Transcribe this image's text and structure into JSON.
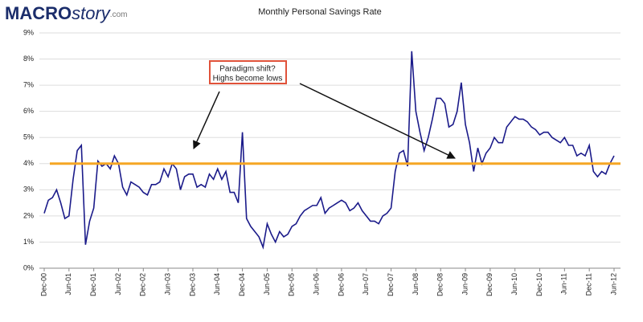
{
  "logo": {
    "main": "MACRO",
    "accent": "story",
    "suffix": ".com"
  },
  "chart_data": {
    "type": "line",
    "title": "Monthly Personal Savings Rate",
    "annotation": [
      "Paradigm shift?",
      "Highs become lows"
    ],
    "categories": [
      "Dec-00",
      null,
      null,
      null,
      null,
      null,
      "Jun-01",
      null,
      null,
      null,
      null,
      null,
      "Dec-01",
      null,
      null,
      null,
      null,
      null,
      "Jun-02",
      null,
      null,
      null,
      null,
      null,
      "Dec-02",
      null,
      null,
      null,
      null,
      null,
      "Jun-03",
      null,
      null,
      null,
      null,
      null,
      "Dec-03",
      null,
      null,
      null,
      null,
      null,
      "Jun-04",
      null,
      null,
      null,
      null,
      null,
      "Dec-04",
      null,
      null,
      null,
      null,
      null,
      "Jun-05",
      null,
      null,
      null,
      null,
      null,
      "Dec-05",
      null,
      null,
      null,
      null,
      null,
      "Jun-06",
      null,
      null,
      null,
      null,
      null,
      "Dec-06",
      null,
      null,
      null,
      null,
      null,
      "Jun-07",
      null,
      null,
      null,
      null,
      null,
      "Dec-07",
      null,
      null,
      null,
      null,
      null,
      "Jun-08",
      null,
      null,
      null,
      null,
      null,
      "Dec-08",
      null,
      null,
      null,
      null,
      null,
      "Jun-09",
      null,
      null,
      null,
      null,
      null,
      "Dec-09",
      null,
      null,
      null,
      null,
      null,
      "Jun-10",
      null,
      null,
      null,
      null,
      null,
      "Dec-10",
      null,
      null,
      null,
      null,
      null,
      "Jun-11",
      null,
      null,
      null,
      null,
      null,
      "Dec-11",
      null,
      null,
      null,
      null,
      null,
      "Jun-12"
    ],
    "series": [
      {
        "name": "Personal Savings Rate",
        "color": "#1b1b8a",
        "values": [
          2.1,
          2.6,
          2.7,
          3.0,
          2.5,
          1.9,
          2.0,
          3.4,
          4.5,
          4.7,
          0.9,
          1.8,
          2.3,
          4.1,
          3.9,
          4.0,
          3.8,
          4.3,
          4.0,
          3.1,
          2.8,
          3.3,
          3.2,
          3.1,
          2.9,
          2.8,
          3.2,
          3.2,
          3.3,
          3.8,
          3.5,
          4.0,
          3.8,
          3.0,
          3.5,
          3.6,
          3.6,
          3.1,
          3.2,
          3.1,
          3.6,
          3.4,
          3.8,
          3.4,
          3.7,
          2.9,
          2.9,
          2.5,
          5.2,
          1.9,
          1.6,
          1.4,
          1.2,
          0.8,
          1.7,
          1.3,
          1.0,
          1.4,
          1.2,
          1.3,
          1.6,
          1.7,
          2.0,
          2.2,
          2.3,
          2.4,
          2.4,
          2.7,
          2.1,
          2.3,
          2.4,
          2.5,
          2.6,
          2.5,
          2.2,
          2.3,
          2.5,
          2.2,
          2.0,
          1.8,
          1.8,
          1.7,
          2.0,
          2.1,
          2.3,
          3.7,
          4.4,
          4.5,
          3.9,
          8.3,
          6.0,
          5.2,
          4.5,
          5.0,
          5.7,
          6.5,
          6.5,
          6.3,
          5.4,
          5.5,
          6.0,
          7.1,
          5.5,
          4.8,
          3.7,
          4.6,
          4.0,
          4.4,
          4.6,
          5.0,
          4.8,
          4.8,
          5.4,
          5.6,
          5.8,
          5.7,
          5.7,
          5.6,
          5.4,
          5.3,
          5.1,
          5.2,
          5.2,
          5.0,
          4.9,
          4.8,
          5.0,
          4.7,
          4.7,
          4.3,
          4.4,
          4.3,
          4.7,
          3.7,
          3.5,
          3.7,
          3.6,
          4.0,
          4.3
        ]
      }
    ],
    "reference_line": {
      "value": 4,
      "color": "#f5a623"
    },
    "ylim": [
      0,
      9
    ],
    "yticks": [
      {
        "value": 0,
        "label": "0%"
      },
      {
        "value": 1,
        "label": "1%"
      },
      {
        "value": 2,
        "label": "2%"
      },
      {
        "value": 3,
        "label": "3%"
      },
      {
        "value": 4,
        "label": "4%"
      },
      {
        "value": 5,
        "label": "5%"
      },
      {
        "value": 6,
        "label": "6%"
      },
      {
        "value": 7,
        "label": "7%"
      },
      {
        "value": 8,
        "label": "8%"
      },
      {
        "value": 9,
        "label": "9%"
      }
    ],
    "grid": true
  }
}
